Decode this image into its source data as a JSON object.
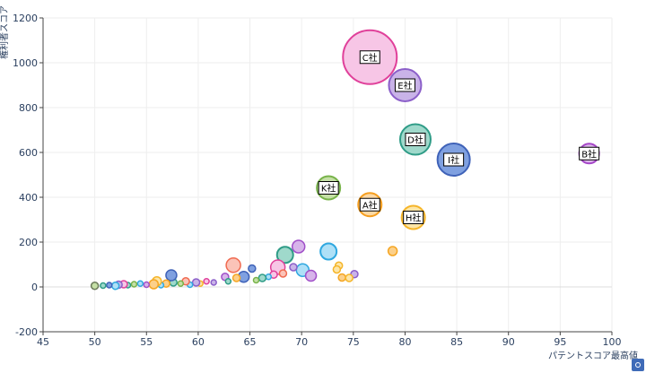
{
  "chart_data": {
    "type": "scatter",
    "title": "",
    "xlabel": "パテントスコア最高値",
    "ylabel": "権利者スコア",
    "xlim": [
      45,
      100
    ],
    "ylim": [
      -200,
      1200
    ],
    "xticks": [
      45,
      50,
      55,
      60,
      65,
      70,
      75,
      80,
      85,
      90,
      95,
      100
    ],
    "yticks": [
      -200,
      0,
      200,
      400,
      600,
      800,
      1000,
      1200
    ],
    "grid": true,
    "legend": "none",
    "labeled_points": [
      {
        "label": "C社",
        "x": 76.6,
        "y": 1025,
        "size": 30,
        "fill": "#f7c6e6",
        "stroke": "#e0409a"
      },
      {
        "label": "E社",
        "x": 80.0,
        "y": 900,
        "size": 18,
        "fill": "#c9b3e8",
        "stroke": "#8b5fc9"
      },
      {
        "label": "D社",
        "x": 81.0,
        "y": 658,
        "size": 17,
        "fill": "#9fd9cb",
        "stroke": "#2f9c87"
      },
      {
        "label": "I社",
        "x": 84.7,
        "y": 568,
        "size": 18,
        "fill": "#7fa0e0",
        "stroke": "#3f62b8"
      },
      {
        "label": "B社",
        "x": 97.8,
        "y": 595,
        "size": 11,
        "fill": "#dcb7ea",
        "stroke": "#a545c8"
      },
      {
        "label": "K社",
        "x": 72.6,
        "y": 442,
        "size": 13,
        "fill": "#c5e0a6",
        "stroke": "#78b34a"
      },
      {
        "label": "A社",
        "x": 76.6,
        "y": 367,
        "size": 13,
        "fill": "#fcd9a6",
        "stroke": "#f59e1f"
      },
      {
        "label": "H社",
        "x": 80.8,
        "y": 310,
        "size": 13,
        "fill": "#fde6a8",
        "stroke": "#f5b52a"
      }
    ],
    "points": [
      {
        "x": 78.8,
        "y": 160,
        "size": 5,
        "fill": "#fcd08a",
        "stroke": "#f5a623"
      },
      {
        "x": 72.6,
        "y": 158,
        "size": 9,
        "fill": "#aee0f7",
        "stroke": "#2fa8e0"
      },
      {
        "x": 69.7,
        "y": 180,
        "size": 7,
        "fill": "#d7b4ea",
        "stroke": "#a04fc8"
      },
      {
        "x": 68.4,
        "y": 143,
        "size": 9,
        "fill": "#9fd9cb",
        "stroke": "#2f9c87"
      },
      {
        "x": 63.4,
        "y": 97,
        "size": 8,
        "fill": "#fbc3b8",
        "stroke": "#f06a50"
      },
      {
        "x": 67.7,
        "y": 88,
        "size": 8,
        "fill": "#f7c6e6",
        "stroke": "#e0409a"
      },
      {
        "x": 65.2,
        "y": 82,
        "size": 4,
        "fill": "#7fa0e0",
        "stroke": "#3f62b8"
      },
      {
        "x": 70.1,
        "y": 75,
        "size": 7,
        "fill": "#aee0f7",
        "stroke": "#2fa8e0"
      },
      {
        "x": 69.2,
        "y": 88,
        "size": 4,
        "fill": "#c9b3e8",
        "stroke": "#8b5fc9"
      },
      {
        "x": 73.6,
        "y": 95,
        "size": 4,
        "fill": "#fde6a8",
        "stroke": "#f5b52a"
      },
      {
        "x": 73.4,
        "y": 78,
        "size": 4,
        "fill": "#fde6a8",
        "stroke": "#f5b52a"
      },
      {
        "x": 70.9,
        "y": 50,
        "size": 6,
        "fill": "#d7b4ea",
        "stroke": "#a04fc8"
      },
      {
        "x": 75.1,
        "y": 57,
        "size": 4,
        "fill": "#c9b3e8",
        "stroke": "#8b5fc9"
      },
      {
        "x": 73.9,
        "y": 42,
        "size": 4,
        "fill": "#fcd08a",
        "stroke": "#f5a623"
      },
      {
        "x": 74.6,
        "y": 40,
        "size": 4,
        "fill": "#fde6a8",
        "stroke": "#f5b52a"
      },
      {
        "x": 68.2,
        "y": 60,
        "size": 4,
        "fill": "#fbc3b8",
        "stroke": "#f06a50"
      },
      {
        "x": 67.3,
        "y": 55,
        "size": 4,
        "fill": "#f7c6e6",
        "stroke": "#e0409a"
      },
      {
        "x": 66.8,
        "y": 45,
        "size": 3,
        "fill": "#aee0f7",
        "stroke": "#2fa8e0"
      },
      {
        "x": 66.2,
        "y": 40,
        "size": 4,
        "fill": "#9fd9cb",
        "stroke": "#2f9c87"
      },
      {
        "x": 65.6,
        "y": 30,
        "size": 3,
        "fill": "#c5e0a6",
        "stroke": "#78b34a"
      },
      {
        "x": 64.4,
        "y": 45,
        "size": 6,
        "fill": "#7fa0e0",
        "stroke": "#3f62b8"
      },
      {
        "x": 63.7,
        "y": 40,
        "size": 4,
        "fill": "#fcd08a",
        "stroke": "#f5a623"
      },
      {
        "x": 62.6,
        "y": 45,
        "size": 4,
        "fill": "#d7b4ea",
        "stroke": "#a04fc8"
      },
      {
        "x": 62.9,
        "y": 25,
        "size": 3,
        "fill": "#9fd9cb",
        "stroke": "#2f9c87"
      },
      {
        "x": 61.5,
        "y": 20,
        "size": 3,
        "fill": "#c9b3e8",
        "stroke": "#8b5fc9"
      },
      {
        "x": 60.8,
        "y": 25,
        "size": 3,
        "fill": "#f7c6e6",
        "stroke": "#e0409a"
      },
      {
        "x": 60.2,
        "y": 15,
        "size": 3,
        "fill": "#fde6a8",
        "stroke": "#f5b52a"
      },
      {
        "x": 59.8,
        "y": 20,
        "size": 4,
        "fill": "#c9b3e8",
        "stroke": "#8b5fc9"
      },
      {
        "x": 59.2,
        "y": 10,
        "size": 3,
        "fill": "#aee0f7",
        "stroke": "#2fa8e0"
      },
      {
        "x": 58.8,
        "y": 25,
        "size": 4,
        "fill": "#fbc3b8",
        "stroke": "#f06a50"
      },
      {
        "x": 58.3,
        "y": 15,
        "size": 3,
        "fill": "#c5e0a6",
        "stroke": "#78b34a"
      },
      {
        "x": 57.6,
        "y": 20,
        "size": 4,
        "fill": "#9fd9cb",
        "stroke": "#2f9c87"
      },
      {
        "x": 57.4,
        "y": 52,
        "size": 6,
        "fill": "#7fa0e0",
        "stroke": "#3f62b8"
      },
      {
        "x": 56.9,
        "y": 15,
        "size": 4,
        "fill": "#fcd08a",
        "stroke": "#f5a623"
      },
      {
        "x": 56.4,
        "y": 8,
        "size": 3,
        "fill": "#aee0f7",
        "stroke": "#2fa8e0"
      },
      {
        "x": 56.0,
        "y": 25,
        "size": 5,
        "fill": "#fde6a8",
        "stroke": "#f5b52a"
      },
      {
        "x": 55.7,
        "y": 12,
        "size": 5,
        "fill": "#fcd08a",
        "stroke": "#f5a623"
      },
      {
        "x": 55.0,
        "y": 10,
        "size": 3,
        "fill": "#d7b4ea",
        "stroke": "#a04fc8"
      },
      {
        "x": 54.4,
        "y": 15,
        "size": 3,
        "fill": "#aee0f7",
        "stroke": "#2fa8e0"
      },
      {
        "x": 53.8,
        "y": 12,
        "size": 3,
        "fill": "#c5e0a6",
        "stroke": "#78b34a"
      },
      {
        "x": 53.2,
        "y": 8,
        "size": 3,
        "fill": "#9fd9cb",
        "stroke": "#2f9c87"
      },
      {
        "x": 52.8,
        "y": 12,
        "size": 4,
        "fill": "#f7c6e6",
        "stroke": "#e0409a"
      },
      {
        "x": 52.3,
        "y": 10,
        "size": 4,
        "fill": "#c9b3e8",
        "stroke": "#8b5fc9"
      },
      {
        "x": 52.0,
        "y": 5,
        "size": 4,
        "fill": "#aee0f7",
        "stroke": "#2fa8e0"
      },
      {
        "x": 51.4,
        "y": 8,
        "size": 3,
        "fill": "#7fa0e0",
        "stroke": "#3f62b8"
      },
      {
        "x": 50.8,
        "y": 6,
        "size": 3,
        "fill": "#9fd9cb",
        "stroke": "#2f9c87"
      },
      {
        "x": 50.0,
        "y": 5,
        "size": 4,
        "fill": "#c5e0a6",
        "stroke": "#6a7a5a"
      }
    ]
  },
  "toolbar": {
    "camera_icon": "camera-icon"
  }
}
